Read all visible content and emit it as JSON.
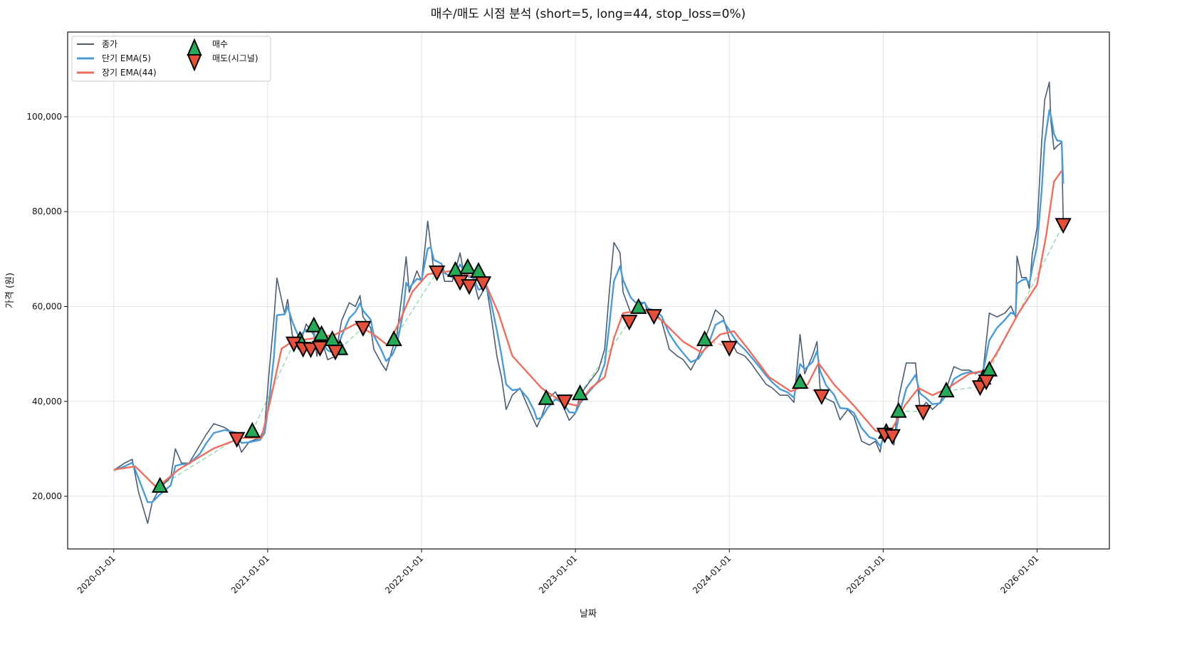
{
  "chart_data": {
    "type": "line",
    "title": "매수/매도 시점 분석 (short=5, long=44, stop_loss=0%)",
    "xlabel": "날짜",
    "ylabel": "가격 (원)",
    "x_units": "decimal year",
    "xlim": [
      2019.7,
      2026.47
    ],
    "ylim": [
      8900,
      117850
    ],
    "grid": true,
    "legend_placement": "top-left",
    "x_ticks": [
      {
        "value": 2020,
        "label": "2020-01-01"
      },
      {
        "value": 2021,
        "label": "2021-01-01"
      },
      {
        "value": 2022,
        "label": "2022-01-01"
      },
      {
        "value": 2023,
        "label": "2023-01-01"
      },
      {
        "value": 2024,
        "label": "2024-01-01"
      },
      {
        "value": 2025,
        "label": "2025-01-01"
      },
      {
        "value": 2026,
        "label": "2026-01-01"
      }
    ],
    "y_ticks": [
      {
        "value": 20000,
        "label": "20,000"
      },
      {
        "value": 40000,
        "label": "40,000"
      },
      {
        "value": 60000,
        "label": "60,000"
      },
      {
        "value": 80000,
        "label": "80,000"
      },
      {
        "value": 100000,
        "label": "100,000"
      }
    ],
    "legend": [
      {
        "key": "close",
        "label": "종가"
      },
      {
        "key": "ema_short",
        "label": "단기 EMA(5)"
      },
      {
        "key": "ema_long",
        "label": "장기 EMA(44)"
      },
      {
        "key": "buy",
        "label": "매수"
      },
      {
        "key": "sell",
        "label": "매도(시그널)"
      }
    ],
    "colors": {
      "close": "#4a5d73",
      "ema_short": "#4a9bd6",
      "ema_long": "#ee6e5e",
      "buy": "#27a95a",
      "sell": "#e5503c",
      "trade_win": "#9fdcb5",
      "trade_loss": "#f3a9a0"
    },
    "series": {
      "close": [
        [
          2020.0,
          25500
        ],
        [
          2020.07,
          27000
        ],
        [
          2020.12,
          27800
        ],
        [
          2020.16,
          21000
        ],
        [
          2020.22,
          14300
        ],
        [
          2020.25,
          18800
        ],
        [
          2020.3,
          21800
        ],
        [
          2020.37,
          24000
        ],
        [
          2020.4,
          30000
        ],
        [
          2020.44,
          27000
        ],
        [
          2020.49,
          27000
        ],
        [
          2020.56,
          30800
        ],
        [
          2020.6,
          33000
        ],
        [
          2020.65,
          35300
        ],
        [
          2020.72,
          34500
        ],
        [
          2020.79,
          33000
        ],
        [
          2020.83,
          29300
        ],
        [
          2020.88,
          31500
        ],
        [
          2020.95,
          32300
        ],
        [
          2020.98,
          34500
        ],
        [
          2021.01,
          46500
        ],
        [
          2021.04,
          57000
        ],
        [
          2021.06,
          66000
        ],
        [
          2021.11,
          58500
        ],
        [
          2021.13,
          61500
        ],
        [
          2021.16,
          54000
        ],
        [
          2021.2,
          51000
        ],
        [
          2021.25,
          56300
        ],
        [
          2021.3,
          54000
        ],
        [
          2021.32,
          49500
        ],
        [
          2021.34,
          54000
        ],
        [
          2021.39,
          48800
        ],
        [
          2021.44,
          49500
        ],
        [
          2021.48,
          57000
        ],
        [
          2021.53,
          60800
        ],
        [
          2021.57,
          60000
        ],
        [
          2021.6,
          62300
        ],
        [
          2021.62,
          57800
        ],
        [
          2021.67,
          55500
        ],
        [
          2021.69,
          51000
        ],
        [
          2021.74,
          48000
        ],
        [
          2021.77,
          46500
        ],
        [
          2021.81,
          51000
        ],
        [
          2021.84,
          54000
        ],
        [
          2021.88,
          64500
        ],
        [
          2021.9,
          70500
        ],
        [
          2021.92,
          63000
        ],
        [
          2021.97,
          67500
        ],
        [
          2022.0,
          65300
        ],
        [
          2022.04,
          78000
        ],
        [
          2022.06,
          72800
        ],
        [
          2022.08,
          67500
        ],
        [
          2022.13,
          68300
        ],
        [
          2022.15,
          65300
        ],
        [
          2022.2,
          65300
        ],
        [
          2022.25,
          71300
        ],
        [
          2022.29,
          64500
        ],
        [
          2022.34,
          65300
        ],
        [
          2022.37,
          61500
        ],
        [
          2022.42,
          64500
        ],
        [
          2022.45,
          58500
        ],
        [
          2022.49,
          49500
        ],
        [
          2022.52,
          45000
        ],
        [
          2022.55,
          38300
        ],
        [
          2022.59,
          41300
        ],
        [
          2022.64,
          42800
        ],
        [
          2022.69,
          39000
        ],
        [
          2022.73,
          36000
        ],
        [
          2022.75,
          34600
        ],
        [
          2022.78,
          36800
        ],
        [
          2022.82,
          40500
        ],
        [
          2022.87,
          42000
        ],
        [
          2022.92,
          39000
        ],
        [
          2022.96,
          36000
        ],
        [
          2023.0,
          37500
        ],
        [
          2023.03,
          41300
        ],
        [
          2023.08,
          43600
        ],
        [
          2023.15,
          46600
        ],
        [
          2023.19,
          51000
        ],
        [
          2023.22,
          63000
        ],
        [
          2023.25,
          73500
        ],
        [
          2023.29,
          71300
        ],
        [
          2023.31,
          63000
        ],
        [
          2023.36,
          58600
        ],
        [
          2023.39,
          60000
        ],
        [
          2023.45,
          60800
        ],
        [
          2023.47,
          58600
        ],
        [
          2023.52,
          58600
        ],
        [
          2023.56,
          57000
        ],
        [
          2023.61,
          51000
        ],
        [
          2023.66,
          49600
        ],
        [
          2023.7,
          48800
        ],
        [
          2023.75,
          46600
        ],
        [
          2023.8,
          49600
        ],
        [
          2023.87,
          55600
        ],
        [
          2023.91,
          59300
        ],
        [
          2023.96,
          57800
        ],
        [
          2024.0,
          53300
        ],
        [
          2024.05,
          50300
        ],
        [
          2024.1,
          49600
        ],
        [
          2024.14,
          48100
        ],
        [
          2024.19,
          45800
        ],
        [
          2024.24,
          43600
        ],
        [
          2024.28,
          42800
        ],
        [
          2024.33,
          41300
        ],
        [
          2024.38,
          41300
        ],
        [
          2024.42,
          39800
        ],
        [
          2024.46,
          54100
        ],
        [
          2024.49,
          45800
        ],
        [
          2024.54,
          49600
        ],
        [
          2024.57,
          52600
        ],
        [
          2024.59,
          42800
        ],
        [
          2024.63,
          40600
        ],
        [
          2024.68,
          39800
        ],
        [
          2024.72,
          36100
        ],
        [
          2024.77,
          38300
        ],
        [
          2024.81,
          36800
        ],
        [
          2024.86,
          31600
        ],
        [
          2024.91,
          30800
        ],
        [
          2024.95,
          31600
        ],
        [
          2024.98,
          29300
        ],
        [
          2025.0,
          33100
        ],
        [
          2025.04,
          33800
        ],
        [
          2025.07,
          30800
        ],
        [
          2025.1,
          40600
        ],
        [
          2025.15,
          48100
        ],
        [
          2025.21,
          48100
        ],
        [
          2025.24,
          38300
        ],
        [
          2025.28,
          39800
        ],
        [
          2025.32,
          38300
        ],
        [
          2025.37,
          39800
        ],
        [
          2025.42,
          43600
        ],
        [
          2025.46,
          47300
        ],
        [
          2025.51,
          46600
        ],
        [
          2025.56,
          46600
        ],
        [
          2025.6,
          45800
        ],
        [
          2025.65,
          46600
        ],
        [
          2025.69,
          58600
        ],
        [
          2025.74,
          57800
        ],
        [
          2025.79,
          58600
        ],
        [
          2025.83,
          60100
        ],
        [
          2025.86,
          57800
        ],
        [
          2025.87,
          70600
        ],
        [
          2025.9,
          66100
        ],
        [
          2025.93,
          66100
        ],
        [
          2025.95,
          63800
        ],
        [
          2025.97,
          71300
        ],
        [
          2026.0,
          76600
        ],
        [
          2026.03,
          94600
        ],
        [
          2026.05,
          103600
        ],
        [
          2026.08,
          107300
        ],
        [
          2026.09,
          99100
        ],
        [
          2026.11,
          93100
        ],
        [
          2026.13,
          93800
        ],
        [
          2026.16,
          94600
        ],
        [
          2026.17,
          78100
        ]
      ],
      "ema_long": [
        [
          2020.0,
          25600
        ],
        [
          2020.14,
          26300
        ],
        [
          2020.28,
          21800
        ],
        [
          2020.42,
          25600
        ],
        [
          2020.65,
          30100
        ],
        [
          2020.83,
          32300
        ],
        [
          2020.96,
          32300
        ],
        [
          2021.02,
          40600
        ],
        [
          2021.09,
          51100
        ],
        [
          2021.16,
          52600
        ],
        [
          2021.3,
          53300
        ],
        [
          2021.44,
          54100
        ],
        [
          2021.57,
          56300
        ],
        [
          2021.69,
          54100
        ],
        [
          2021.78,
          51800
        ],
        [
          2021.85,
          56300
        ],
        [
          2021.94,
          63100
        ],
        [
          2022.04,
          66800
        ],
        [
          2022.22,
          67600
        ],
        [
          2022.41,
          65300
        ],
        [
          2022.5,
          58600
        ],
        [
          2022.59,
          49600
        ],
        [
          2022.78,
          42800
        ],
        [
          2022.92,
          39800
        ],
        [
          2023.01,
          39100
        ],
        [
          2023.1,
          42800
        ],
        [
          2023.19,
          45100
        ],
        [
          2023.25,
          53300
        ],
        [
          2023.31,
          58600
        ],
        [
          2023.45,
          59300
        ],
        [
          2023.56,
          57100
        ],
        [
          2023.7,
          52600
        ],
        [
          2023.82,
          50300
        ],
        [
          2023.94,
          54100
        ],
        [
          2024.03,
          54800
        ],
        [
          2024.12,
          51100
        ],
        [
          2024.26,
          45100
        ],
        [
          2024.4,
          42100
        ],
        [
          2024.51,
          43600
        ],
        [
          2024.58,
          48100
        ],
        [
          2024.68,
          43600
        ],
        [
          2024.81,
          39100
        ],
        [
          2024.95,
          33800
        ],
        [
          2025.04,
          33100
        ],
        [
          2025.14,
          39100
        ],
        [
          2025.23,
          42800
        ],
        [
          2025.32,
          41300
        ],
        [
          2025.42,
          42800
        ],
        [
          2025.56,
          45800
        ],
        [
          2025.67,
          46600
        ],
        [
          2025.74,
          50300
        ],
        [
          2025.88,
          58600
        ],
        [
          2026.0,
          64600
        ],
        [
          2026.06,
          75100
        ],
        [
          2026.11,
          86300
        ],
        [
          2026.16,
          88600
        ]
      ]
    },
    "ema_short_period": 5,
    "buys": [
      [
        2020.3,
        22100
      ],
      [
        2020.9,
        33700
      ],
      [
        2021.21,
        52900
      ],
      [
        2021.3,
        55900
      ],
      [
        2021.35,
        54100
      ],
      [
        2021.42,
        53000
      ],
      [
        2021.47,
        51100
      ],
      [
        2021.82,
        53000
      ],
      [
        2022.22,
        67600
      ],
      [
        2022.3,
        68200
      ],
      [
        2022.37,
        67400
      ],
      [
        2022.81,
        40600
      ],
      [
        2023.03,
        41600
      ],
      [
        2023.41,
        59800
      ],
      [
        2023.84,
        53000
      ],
      [
        2024.46,
        44000
      ],
      [
        2025.02,
        33500
      ],
      [
        2025.1,
        37900
      ],
      [
        2025.41,
        42200
      ],
      [
        2025.65,
        44900
      ],
      [
        2025.69,
        46600
      ]
    ],
    "sells": [
      [
        2020.8,
        32200
      ],
      [
        2021.17,
        52300
      ],
      [
        2021.23,
        51200
      ],
      [
        2021.28,
        51100
      ],
      [
        2021.34,
        51400
      ],
      [
        2021.44,
        50600
      ],
      [
        2021.62,
        55600
      ],
      [
        2022.1,
        67300
      ],
      [
        2022.25,
        65300
      ],
      [
        2022.31,
        64400
      ],
      [
        2022.4,
        65000
      ],
      [
        2022.93,
        40100
      ],
      [
        2023.35,
        56900
      ],
      [
        2023.51,
        58100
      ],
      [
        2024.0,
        51400
      ],
      [
        2024.6,
        41200
      ],
      [
        2025.01,
        33100
      ],
      [
        2025.06,
        32800
      ],
      [
        2025.26,
        37900
      ],
      [
        2025.63,
        43100
      ],
      [
        2025.67,
        44300
      ],
      [
        2026.17,
        77300
      ]
    ]
  }
}
